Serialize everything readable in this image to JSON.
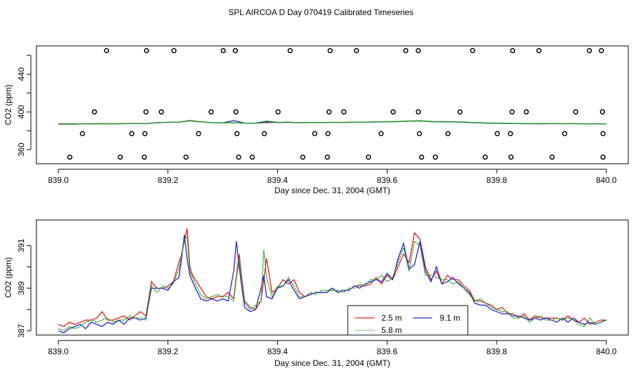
{
  "chart_data": [
    {
      "type": "scatter",
      "title": "SPL AIRCOA D  Day 070419  Calibrated Timeseries",
      "xlabel": "Day since Dec. 31, 2004 (GMT)",
      "ylabel": "CO2 (ppm)",
      "xlim": [
        839.0,
        840.0
      ],
      "ylim": [
        345,
        470
      ],
      "xticks": [
        839.0,
        839.2,
        839.4,
        839.6,
        839.8,
        840.0
      ],
      "xtick_labels": [
        "839.0",
        "839.2",
        "839.4",
        "839.6",
        "839.8",
        "840.0"
      ],
      "yticks": [
        360,
        400,
        440
      ],
      "ytick_labels": [
        "360",
        "400",
        "440"
      ],
      "points_x": [
        839.088,
        839.161,
        839.211,
        839.301,
        839.323,
        839.423,
        839.496,
        839.544,
        839.634,
        839.657,
        839.756,
        839.829,
        839.877,
        839.969,
        839.991,
        839.066,
        839.16,
        839.188,
        839.279,
        839.324,
        839.401,
        839.494,
        839.521,
        839.611,
        839.657,
        839.733,
        839.828,
        839.854,
        839.944,
        839.993,
        839.044,
        839.134,
        839.158,
        839.256,
        839.326,
        839.376,
        839.468,
        839.492,
        839.589,
        839.659,
        839.711,
        839.801,
        839.825,
        839.924,
        839.994,
        839.021,
        839.113,
        839.157,
        839.233,
        839.329,
        839.354,
        839.446,
        839.491,
        839.566,
        839.663,
        839.688,
        839.779,
        839.826,
        839.901,
        839.994
      ],
      "points_y": [
        465,
        465,
        465,
        465,
        465,
        465,
        465,
        465,
        465,
        465,
        465,
        465,
        465,
        465,
        465,
        400,
        400,
        400,
        400,
        400,
        400,
        400,
        400,
        400,
        400,
        400,
        400,
        400,
        400,
        400,
        377,
        377,
        377,
        377,
        377,
        377,
        377,
        377,
        377,
        377,
        377,
        377,
        377,
        377,
        377,
        352,
        352,
        352,
        352,
        352,
        352,
        352,
        352,
        352,
        352,
        352,
        352,
        352,
        352,
        352
      ],
      "x": [
        839.0,
        839.02,
        839.04,
        839.06,
        839.08,
        839.1,
        839.12,
        839.14,
        839.16,
        839.18,
        839.2,
        839.22,
        839.24,
        839.26,
        839.28,
        839.3,
        839.32,
        839.34,
        839.36,
        839.38,
        839.4,
        839.42,
        839.44,
        839.46,
        839.48,
        839.5,
        839.52,
        839.54,
        839.56,
        839.58,
        839.6,
        839.62,
        839.64,
        839.66,
        839.68,
        839.7,
        839.72,
        839.74,
        839.76,
        839.78,
        839.8,
        839.82,
        839.84,
        839.86,
        839.88,
        839.9,
        839.92,
        839.94,
        839.96,
        839.98,
        840.0
      ],
      "series": [
        {
          "name": "2.5 m",
          "color": "#e41a1c",
          "values": [
            387.4,
            387.3,
            387.4,
            387.5,
            387.6,
            387.5,
            387.6,
            387.7,
            387.6,
            388.6,
            389.0,
            389.1,
            390.9,
            389.6,
            388.6,
            388.5,
            388.6,
            388.1,
            388.1,
            388.7,
            388.9,
            389.2,
            388.6,
            388.8,
            388.8,
            388.9,
            388.9,
            389.1,
            389.1,
            389.4,
            389.5,
            389.7,
            390.4,
            390.6,
            389.7,
            389.5,
            389.3,
            389.1,
            388.6,
            388.2,
            388.0,
            387.8,
            387.6,
            387.5,
            387.5,
            387.6,
            387.5,
            387.6,
            387.5,
            387.3,
            387.4
          ]
        },
        {
          "name": "9.1 m",
          "color": "#1f1fd6",
          "values": [
            387.0,
            387.0,
            387.2,
            387.3,
            387.3,
            387.4,
            387.5,
            387.6,
            387.5,
            388.5,
            389.0,
            389.1,
            390.6,
            389.4,
            388.5,
            388.4,
            390.8,
            388.2,
            388.0,
            389.3,
            388.8,
            388.9,
            388.5,
            388.7,
            388.8,
            388.9,
            388.9,
            389.0,
            389.0,
            389.3,
            389.4,
            389.7,
            390.1,
            390.5,
            389.6,
            389.8,
            389.5,
            389.0,
            388.5,
            388.1,
            387.9,
            387.7,
            387.6,
            387.5,
            387.4,
            387.5,
            387.5,
            387.5,
            387.3,
            387.2,
            387.4
          ]
        },
        {
          "name": "5.8 m",
          "color": "#1aa01a",
          "values": [
            387.1,
            387.1,
            387.3,
            387.2,
            387.4,
            387.4,
            387.6,
            387.6,
            387.5,
            388.7,
            389.0,
            389.1,
            390.7,
            389.5,
            388.6,
            388.5,
            388.5,
            388.2,
            388.1,
            390.3,
            389.0,
            389.0,
            388.6,
            388.8,
            388.8,
            389.0,
            389.0,
            389.1,
            389.1,
            389.6,
            389.5,
            389.9,
            390.2,
            390.6,
            389.9,
            389.4,
            389.4,
            389.3,
            388.7,
            388.3,
            388.1,
            387.9,
            387.7,
            387.6,
            387.6,
            387.6,
            387.5,
            387.5,
            387.4,
            387.2,
            387.4
          ]
        }
      ],
      "legend_position": "bottom-center"
    },
    {
      "type": "line",
      "title": "",
      "xlabel": "Day since Dec. 31, 2004 (GMT)",
      "ylabel": "CO2 (ppm)",
      "xlim": [
        839.0,
        840.0
      ],
      "ylim": [
        386.8,
        392.2
      ],
      "xticks": [
        839.0,
        839.2,
        839.4,
        839.6,
        839.8,
        840.0
      ],
      "xtick_labels": [
        "839.0",
        "839.2",
        "839.4",
        "839.6",
        "839.8",
        "840.0"
      ],
      "yticks": [
        387,
        389,
        391
      ],
      "ytick_labels": [
        "387",
        "389",
        "391"
      ],
      "x": [
        839.0,
        839.01,
        839.02,
        839.03,
        839.04,
        839.05,
        839.06,
        839.07,
        839.08,
        839.09,
        839.1,
        839.11,
        839.12,
        839.13,
        839.14,
        839.15,
        839.16,
        839.17,
        839.18,
        839.19,
        839.2,
        839.21,
        839.22,
        839.225,
        839.23,
        839.235,
        839.24,
        839.245,
        839.25,
        839.26,
        839.27,
        839.28,
        839.29,
        839.3,
        839.31,
        839.32,
        839.325,
        839.33,
        839.335,
        839.34,
        839.35,
        839.36,
        839.37,
        839.375,
        839.38,
        839.39,
        839.4,
        839.41,
        839.42,
        839.43,
        839.44,
        839.45,
        839.46,
        839.47,
        839.48,
        839.49,
        839.5,
        839.51,
        839.52,
        839.53,
        839.54,
        839.55,
        839.56,
        839.57,
        839.58,
        839.59,
        839.6,
        839.61,
        839.62,
        839.63,
        839.64,
        839.65,
        839.66,
        839.67,
        839.68,
        839.69,
        839.7,
        839.71,
        839.72,
        839.73,
        839.74,
        839.75,
        839.76,
        839.77,
        839.78,
        839.79,
        839.8,
        839.81,
        839.82,
        839.83,
        839.84,
        839.85,
        839.86,
        839.87,
        839.88,
        839.89,
        839.9,
        839.91,
        839.92,
        839.93,
        839.94,
        839.95,
        839.96,
        839.97,
        839.98,
        839.99,
        840.0
      ],
      "series": [
        {
          "name": "2.5 m",
          "color": "#e41a1c",
          "values": [
            387.3,
            387.2,
            387.4,
            387.3,
            387.4,
            387.5,
            387.5,
            387.6,
            387.9,
            387.5,
            387.5,
            387.6,
            387.7,
            387.5,
            387.7,
            387.9,
            387.7,
            389.3,
            389.0,
            389.0,
            389.1,
            389.3,
            390.2,
            390.6,
            391.2,
            391.8,
            390.0,
            389.6,
            389.4,
            389.0,
            388.6,
            388.5,
            388.6,
            388.6,
            388.8,
            388.5,
            389.6,
            390.6,
            389.4,
            388.4,
            388.1,
            388.0,
            388.4,
            389.4,
            390.4,
            388.8,
            389.0,
            389.4,
            389.2,
            389.4,
            388.8,
            388.6,
            388.7,
            388.8,
            388.8,
            388.8,
            389.0,
            388.8,
            388.9,
            388.9,
            389.1,
            389.1,
            389.1,
            389.2,
            389.5,
            389.2,
            389.6,
            389.4,
            390.0,
            390.6,
            390.2,
            391.6,
            391.3,
            390.0,
            389.4,
            389.8,
            389.2,
            389.6,
            389.4,
            389.4,
            389.1,
            388.9,
            388.4,
            388.4,
            388.3,
            388.2,
            388.0,
            388.1,
            387.8,
            387.8,
            387.6,
            387.8,
            387.5,
            387.7,
            387.6,
            387.6,
            387.6,
            387.6,
            387.5,
            387.7,
            387.5,
            387.4,
            387.6,
            387.3,
            387.4,
            387.5,
            387.5
          ]
        },
        {
          "name": "9.1 m",
          "color": "#1f1fd6",
          "values": [
            387.0,
            386.9,
            387.1,
            387.2,
            387.3,
            387.1,
            387.4,
            387.3,
            387.2,
            387.4,
            387.3,
            387.5,
            387.3,
            387.6,
            387.6,
            387.5,
            387.6,
            389.0,
            389.0,
            389.0,
            388.9,
            389.3,
            389.5,
            390.4,
            391.5,
            390.4,
            389.6,
            389.3,
            389.0,
            388.5,
            388.4,
            388.5,
            388.4,
            388.5,
            388.4,
            389.8,
            391.2,
            390.0,
            389.0,
            388.1,
            387.9,
            388.0,
            389.0,
            389.6,
            388.6,
            388.5,
            389.0,
            389.1,
            389.4,
            388.9,
            388.5,
            388.6,
            388.7,
            388.8,
            388.8,
            388.8,
            389.0,
            388.8,
            388.9,
            388.9,
            389.1,
            389.0,
            389.2,
            389.3,
            389.4,
            389.3,
            389.7,
            389.4,
            390.4,
            391.1,
            389.9,
            390.1,
            391.2,
            389.8,
            389.3,
            390.0,
            389.2,
            389.3,
            389.5,
            389.2,
            389.0,
            388.8,
            388.3,
            388.2,
            388.2,
            388.0,
            387.9,
            387.8,
            387.8,
            387.7,
            387.7,
            387.6,
            387.5,
            387.6,
            387.5,
            387.6,
            387.5,
            387.4,
            387.6,
            387.4,
            387.6,
            387.4,
            387.3,
            387.4,
            387.3,
            387.4,
            387.5
          ]
        },
        {
          "name": "5.8 m",
          "color": "#1aa01a",
          "values": [
            387.1,
            387.0,
            387.2,
            387.1,
            387.2,
            387.4,
            387.5,
            387.4,
            387.5,
            387.6,
            387.4,
            387.5,
            387.5,
            387.7,
            387.6,
            387.6,
            387.5,
            389.1,
            388.8,
            389.1,
            389.0,
            389.2,
            389.9,
            390.5,
            391.3,
            391.4,
            389.8,
            389.5,
            389.2,
            388.7,
            388.5,
            388.6,
            388.7,
            388.6,
            388.6,
            388.4,
            389.5,
            390.3,
            389.2,
            388.3,
            388.0,
            388.2,
            388.4,
            390.8,
            389.5,
            388.6,
            389.1,
            389.1,
            389.5,
            389.1,
            388.6,
            388.6,
            388.8,
            388.7,
            388.9,
            388.9,
            388.9,
            388.9,
            388.8,
            389.0,
            389.0,
            389.2,
            389.1,
            389.4,
            389.4,
            389.6,
            389.3,
            389.5,
            390.2,
            390.9,
            389.8,
            391.2,
            391.0,
            389.6,
            389.6,
            389.5,
            389.4,
            389.4,
            389.2,
            389.3,
            389.0,
            388.7,
            388.4,
            388.5,
            388.3,
            388.1,
            388.0,
            387.9,
            387.9,
            387.6,
            387.6,
            387.7,
            387.4,
            387.6,
            387.7,
            387.5,
            387.5,
            387.6,
            387.5,
            387.6,
            387.5,
            387.3,
            387.2,
            387.6,
            387.3,
            387.4,
            387.5
          ]
        }
      ],
      "legend": [
        "2.5 m",
        "5.8 m",
        "9.1 m"
      ],
      "legend_position": "bottom-center"
    }
  ]
}
